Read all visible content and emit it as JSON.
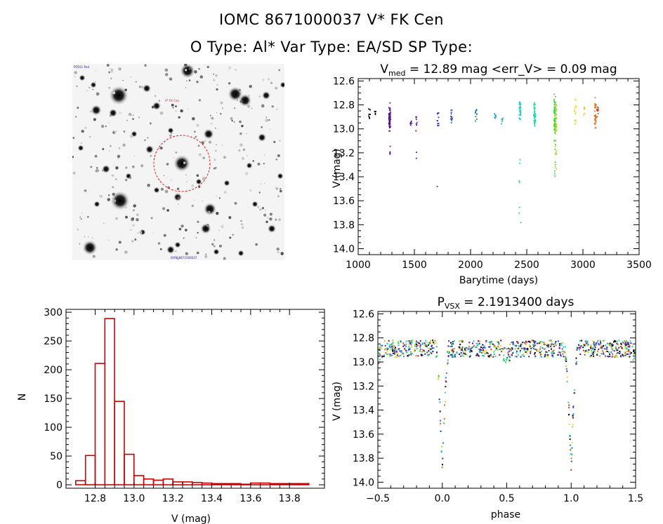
{
  "header": {
    "title": "IOMC 8671000037    V* FK Cen",
    "subtitle": "O Type: Al*  Var Type: EA/SD  SP Type:"
  },
  "image_panel": {
    "labels": [
      "POSS1 Red",
      "V* FK Cen",
      "IOMC 8671000037"
    ]
  },
  "chart_data": [
    {
      "id": "lightcurve",
      "type": "scatter",
      "title": "V_med = 12.89 mag <err_V> = 0.09 mag",
      "title_parts": {
        "base": "V",
        "sub": "med",
        "rest": " = 12.89 mag <err_V> = 0.09 mag"
      },
      "xlabel": "Barytime (days)",
      "ylabel": "V (mag)",
      "xlim": [
        1000,
        3500
      ],
      "ylim": [
        14.05,
        12.58
      ],
      "xticks": [
        1000,
        1500,
        2000,
        2500,
        3000,
        3500
      ],
      "yticks": [
        12.6,
        12.8,
        13.0,
        13.2,
        13.4,
        13.6,
        13.8,
        14.0
      ],
      "xtick_labels": [
        "1000",
        "1500",
        "2000",
        "2500",
        "3000",
        "3500"
      ],
      "ytick_labels": [
        "12.6",
        "12.8",
        "13.0",
        "13.2",
        "13.4",
        "13.6",
        "13.8",
        "14.0"
      ],
      "seasons": [
        {
          "t": 1100,
          "v": 12.86,
          "lo": 12.82,
          "hi": 12.92,
          "color": "#000000",
          "n": 8
        },
        {
          "t": 1150,
          "v": 12.86,
          "lo": 12.84,
          "hi": 12.88,
          "color": "#000000",
          "n": 4
        },
        {
          "t": 1280,
          "v": 12.92,
          "lo": 12.78,
          "hi": 13.31,
          "color": "#5a0f8a",
          "n": 60
        },
        {
          "t": 1470,
          "v": 12.95,
          "lo": 12.92,
          "hi": 13.0,
          "color": "#5a0f8a",
          "n": 6
        },
        {
          "t": 1520,
          "v": 12.93,
          "lo": 12.88,
          "hi": 13.3,
          "color": "#4b1aa0",
          "n": 10
        },
        {
          "t": 1710,
          "v": 12.92,
          "lo": 12.82,
          "hi": 13.77,
          "color": "#3a28b0",
          "n": 12
        },
        {
          "t": 1830,
          "v": 12.88,
          "lo": 12.81,
          "hi": 12.95,
          "color": "#2b4cc8",
          "n": 14
        },
        {
          "t": 2050,
          "v": 12.88,
          "lo": 12.82,
          "hi": 12.96,
          "color": "#1e78cc",
          "n": 12
        },
        {
          "t": 2220,
          "v": 12.89,
          "lo": 12.86,
          "hi": 12.92,
          "color": "#22a8c8",
          "n": 8
        },
        {
          "t": 2280,
          "v": 12.92,
          "lo": 12.89,
          "hi": 12.96,
          "color": "#22b4c0",
          "n": 6
        },
        {
          "t": 2440,
          "v": 12.85,
          "lo": 12.74,
          "hi": 13.86,
          "color": "#1ecccc",
          "n": 40
        },
        {
          "t": 2570,
          "v": 12.88,
          "lo": 12.78,
          "hi": 13.0,
          "color": "#20d8a0",
          "n": 45
        },
        {
          "t": 2750,
          "v": 12.9,
          "lo": 12.71,
          "hi": 13.48,
          "color": "#3ed23e",
          "n": 80
        },
        {
          "t": 2760,
          "v": 12.92,
          "lo": 12.74,
          "hi": 13.36,
          "color": "#9ade22",
          "n": 40
        },
        {
          "t": 2930,
          "v": 12.88,
          "lo": 12.75,
          "hi": 13.0,
          "color": "#e6e022",
          "n": 16
        },
        {
          "t": 3010,
          "v": 12.85,
          "lo": 12.8,
          "hi": 12.9,
          "color": "#f0c020",
          "n": 6
        },
        {
          "t": 3110,
          "v": 12.87,
          "lo": 12.72,
          "hi": 13.0,
          "color": "#e07018",
          "n": 30
        },
        {
          "t": 3130,
          "v": 12.86,
          "lo": 12.79,
          "hi": 12.93,
          "color": "#d83a14",
          "n": 10
        }
      ]
    },
    {
      "id": "histogram",
      "type": "bar",
      "title": "",
      "xlabel": "V (mag)",
      "ylabel": "N",
      "bin_width": 0.05,
      "bin_left_edges": [
        12.7,
        12.75,
        12.8,
        12.85,
        12.9,
        12.95,
        13.0,
        13.05,
        13.1,
        13.15,
        13.2,
        13.25,
        13.3,
        13.35,
        13.4,
        13.45,
        13.5,
        13.55,
        13.6,
        13.65,
        13.7,
        13.75,
        13.8,
        13.85
      ],
      "values": [
        7,
        51,
        211,
        289,
        145,
        53,
        16,
        10,
        8,
        10,
        5,
        5,
        4,
        3,
        2,
        2,
        2,
        1,
        3,
        3,
        2,
        2,
        2,
        2
      ],
      "xlim": [
        12.65,
        13.98
      ],
      "ylim": [
        -6,
        305
      ],
      "xticks": [
        12.8,
        13.0,
        13.2,
        13.4,
        13.6,
        13.8
      ],
      "yticks": [
        0,
        50,
        100,
        150,
        200,
        250,
        300
      ],
      "xtick_labels": [
        "12.8",
        "13.0",
        "13.2",
        "13.4",
        "13.6",
        "13.8"
      ],
      "ytick_labels": [
        "0",
        "50",
        "100",
        "150",
        "200",
        "250",
        "300"
      ],
      "bar_color": "#cc0000"
    },
    {
      "id": "phased",
      "type": "scatter",
      "title": "P_vsx = 2.1913400 days",
      "title_parts": {
        "base": "P",
        "sub": "VSX",
        "rest": " = 2.1913400 days"
      },
      "xlabel": "phase",
      "ylabel": "V (mag)",
      "xlim": [
        -0.5,
        1.5
      ],
      "ylim": [
        14.05,
        12.58
      ],
      "xticks": [
        -0.5,
        0.0,
        0.5,
        1.0,
        1.5
      ],
      "yticks": [
        12.6,
        12.8,
        13.0,
        13.2,
        13.4,
        13.6,
        13.8,
        14.0
      ],
      "xtick_labels": [
        "−0.5",
        "0.0",
        "0.5",
        "1.0",
        "1.5"
      ],
      "ytick_labels": [
        "12.6",
        "12.8",
        "13.0",
        "13.2",
        "13.4",
        "13.6",
        "13.8",
        "14.0"
      ],
      "baseline": 12.89,
      "primary_eclipse": {
        "phase": 0.0,
        "depth_min": 13.86,
        "half_width": 0.05
      },
      "secondary_eclipse": {
        "phase": 0.5,
        "depth_min": 12.96,
        "half_width": 0.04
      }
    }
  ]
}
